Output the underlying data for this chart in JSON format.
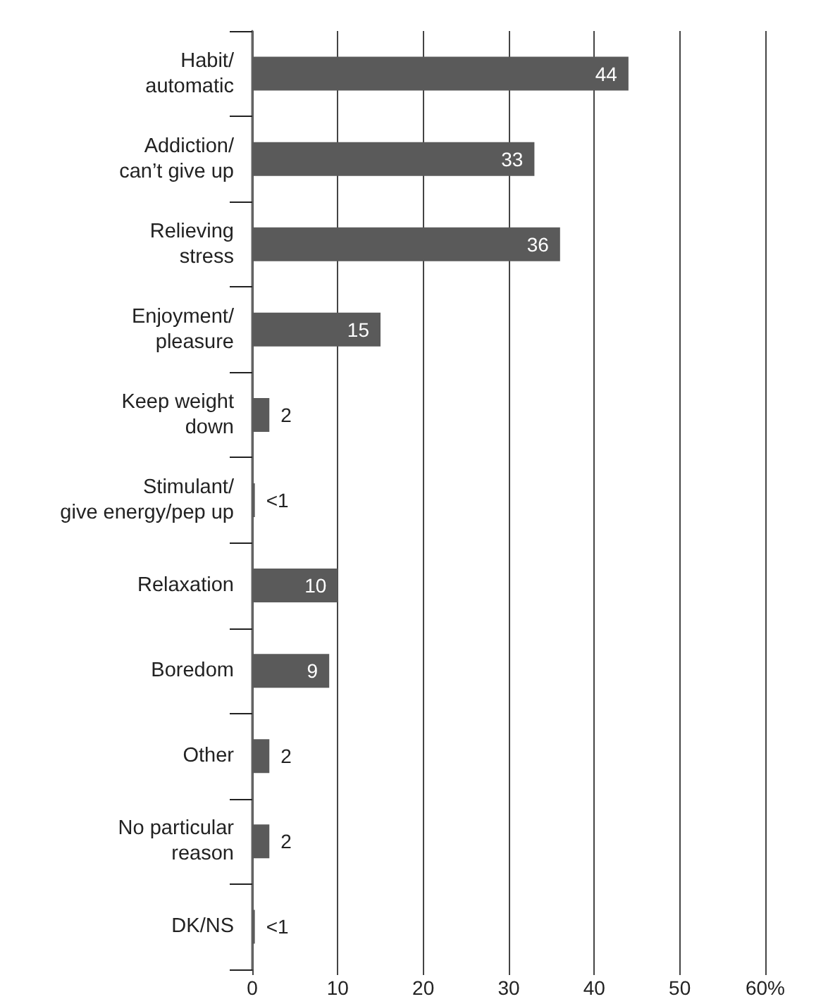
{
  "chart_data": {
    "type": "bar",
    "orientation": "horizontal",
    "categories": [
      "Habit/\nautomatic",
      "Addiction/\ncan’t give up",
      "Relieving\nstress",
      "Enjoyment/\npleasure",
      "Keep weight\ndown",
      "Stimulant/\ngive energy/pep up",
      "Relaxation",
      "Boredom",
      "Other",
      "No particular\nreason",
      "DK/NS"
    ],
    "values": [
      44,
      33,
      36,
      15,
      2,
      0.3,
      10,
      9,
      2,
      2,
      0.3
    ],
    "value_labels": [
      "44",
      "33",
      "36",
      "15",
      "2",
      "<1",
      "10",
      "9",
      "2",
      "2",
      "<1"
    ],
    "color": "#5a5a5a",
    "xlim": [
      0,
      60
    ],
    "xticks": [
      0,
      10,
      20,
      30,
      40,
      50,
      {
        "value": 60,
        "label": "60%"
      }
    ],
    "grid": "x"
  }
}
